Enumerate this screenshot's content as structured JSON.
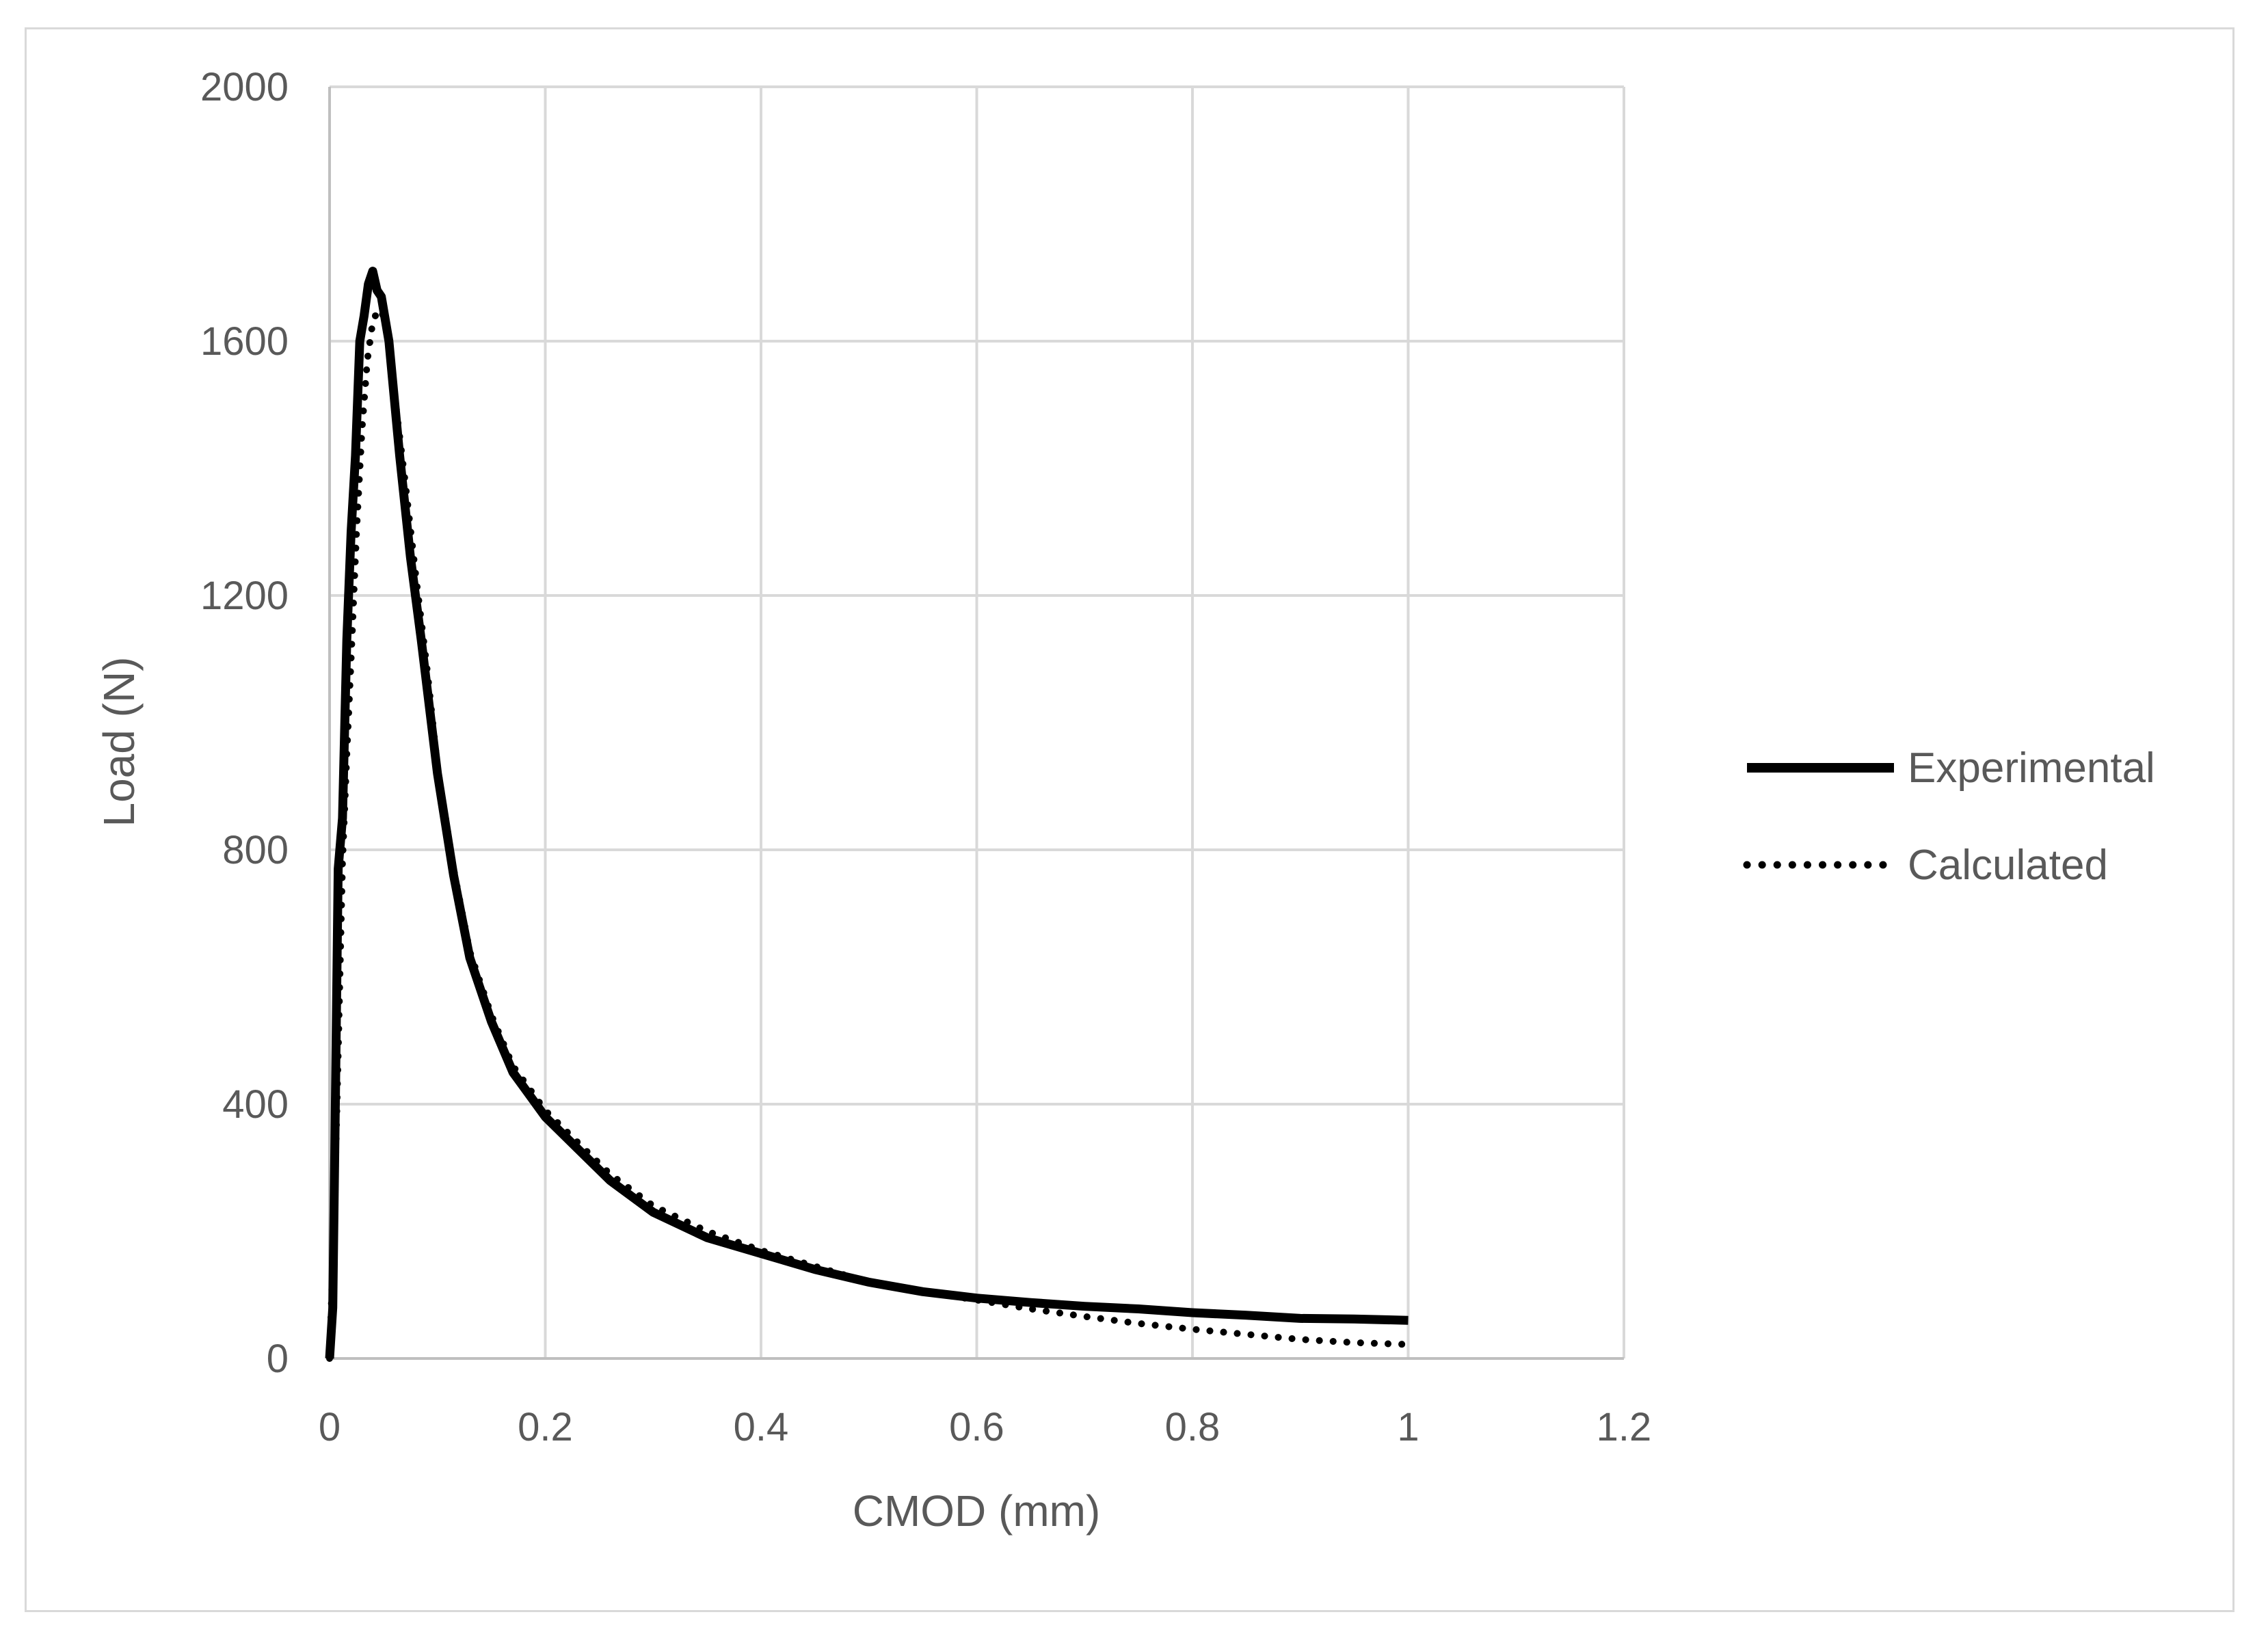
{
  "chart_data": {
    "type": "line",
    "title": "",
    "xlabel": "CMOD (mm)",
    "ylabel": "Load (N)",
    "xlim": [
      0,
      1.2
    ],
    "ylim": [
      0,
      2000
    ],
    "xticks": [
      0,
      0.2,
      0.4,
      0.6,
      0.8,
      1,
      1.2
    ],
    "xtick_labels": [
      "0",
      "0.2",
      "0.4",
      "0.6",
      "0.8",
      "1",
      "1.2"
    ],
    "yticks": [
      0,
      400,
      800,
      1200,
      1600,
      2000
    ],
    "ytick_labels": [
      "0",
      "400",
      "800",
      "1200",
      "1600",
      "2000"
    ],
    "grid": true,
    "legend_position": "right",
    "series": [
      {
        "name": "Experimental",
        "style": "solid",
        "color": "#000000",
        "x": [
          0,
          0.003,
          0.005,
          0.008,
          0.012,
          0.016,
          0.02,
          0.024,
          0.028,
          0.032,
          0.036,
          0.04,
          0.044,
          0.048,
          0.055,
          0.065,
          0.075,
          0.085,
          0.1,
          0.115,
          0.13,
          0.15,
          0.17,
          0.2,
          0.23,
          0.26,
          0.3,
          0.35,
          0.4,
          0.45,
          0.5,
          0.55,
          0.6,
          0.65,
          0.7,
          0.75,
          0.8,
          0.85,
          0.9,
          0.95,
          1.0
        ],
        "y": [
          0,
          80,
          350,
          770,
          850,
          1130,
          1300,
          1420,
          1600,
          1640,
          1690,
          1710,
          1680,
          1670,
          1600,
          1420,
          1260,
          1130,
          920,
          760,
          630,
          530,
          450,
          380,
          330,
          280,
          230,
          190,
          165,
          140,
          120,
          105,
          95,
          88,
          82,
          78,
          72,
          68,
          63,
          62,
          60
        ]
      },
      {
        "name": "Calculated",
        "style": "dotted",
        "color": "#000000",
        "x": [
          0,
          0.004,
          0.008,
          0.012,
          0.016,
          0.02,
          0.025,
          0.03,
          0.035,
          0.04,
          0.045,
          0.05,
          0.055,
          0.06,
          0.07,
          0.08,
          0.09,
          0.1,
          0.115,
          0.13,
          0.15,
          0.17,
          0.2,
          0.23,
          0.26,
          0.3,
          0.35,
          0.4,
          0.45,
          0.5,
          0.55,
          0.6,
          0.65,
          0.7,
          0.75,
          0.8,
          0.85,
          0.9,
          0.95,
          1.0
        ],
        "y": [
          0,
          200,
          480,
          780,
          950,
          1100,
          1300,
          1460,
          1570,
          1630,
          1650,
          1640,
          1600,
          1520,
          1380,
          1230,
          1090,
          930,
          770,
          640,
          540,
          460,
          390,
          340,
          290,
          240,
          200,
          170,
          145,
          120,
          105,
          92,
          78,
          66,
          55,
          46,
          38,
          30,
          25,
          22
        ]
      }
    ]
  }
}
